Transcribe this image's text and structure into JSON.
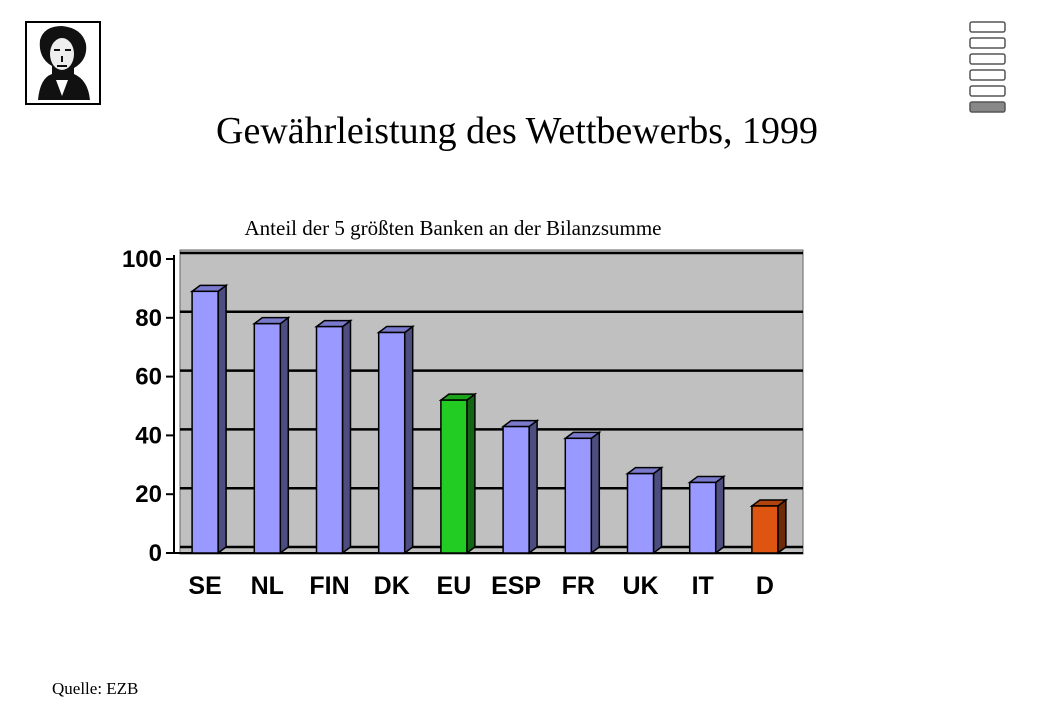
{
  "chart_data": {
    "type": "bar",
    "title": "Gewährleistung des Wettbewerbs, 1999",
    "subtitle": "Anteil der 5 größten Banken an der Bilanzsumme",
    "source": "Quelle: EZB",
    "categories": [
      "SE",
      "NL",
      "FIN",
      "DK",
      "EU",
      "ESP",
      "FR",
      "UK",
      "IT",
      "D"
    ],
    "values": [
      89,
      78,
      77,
      75,
      52,
      43,
      39,
      27,
      24,
      16
    ],
    "colors": [
      "#9999ff",
      "#9999ff",
      "#9999ff",
      "#9999ff",
      "#22cc22",
      "#9999ff",
      "#9999ff",
      "#9999ff",
      "#9999ff",
      "#dd5511"
    ],
    "ylim": [
      0,
      100
    ],
    "yticks": [
      0,
      20,
      40,
      60,
      80,
      100
    ],
    "grid": true
  }
}
